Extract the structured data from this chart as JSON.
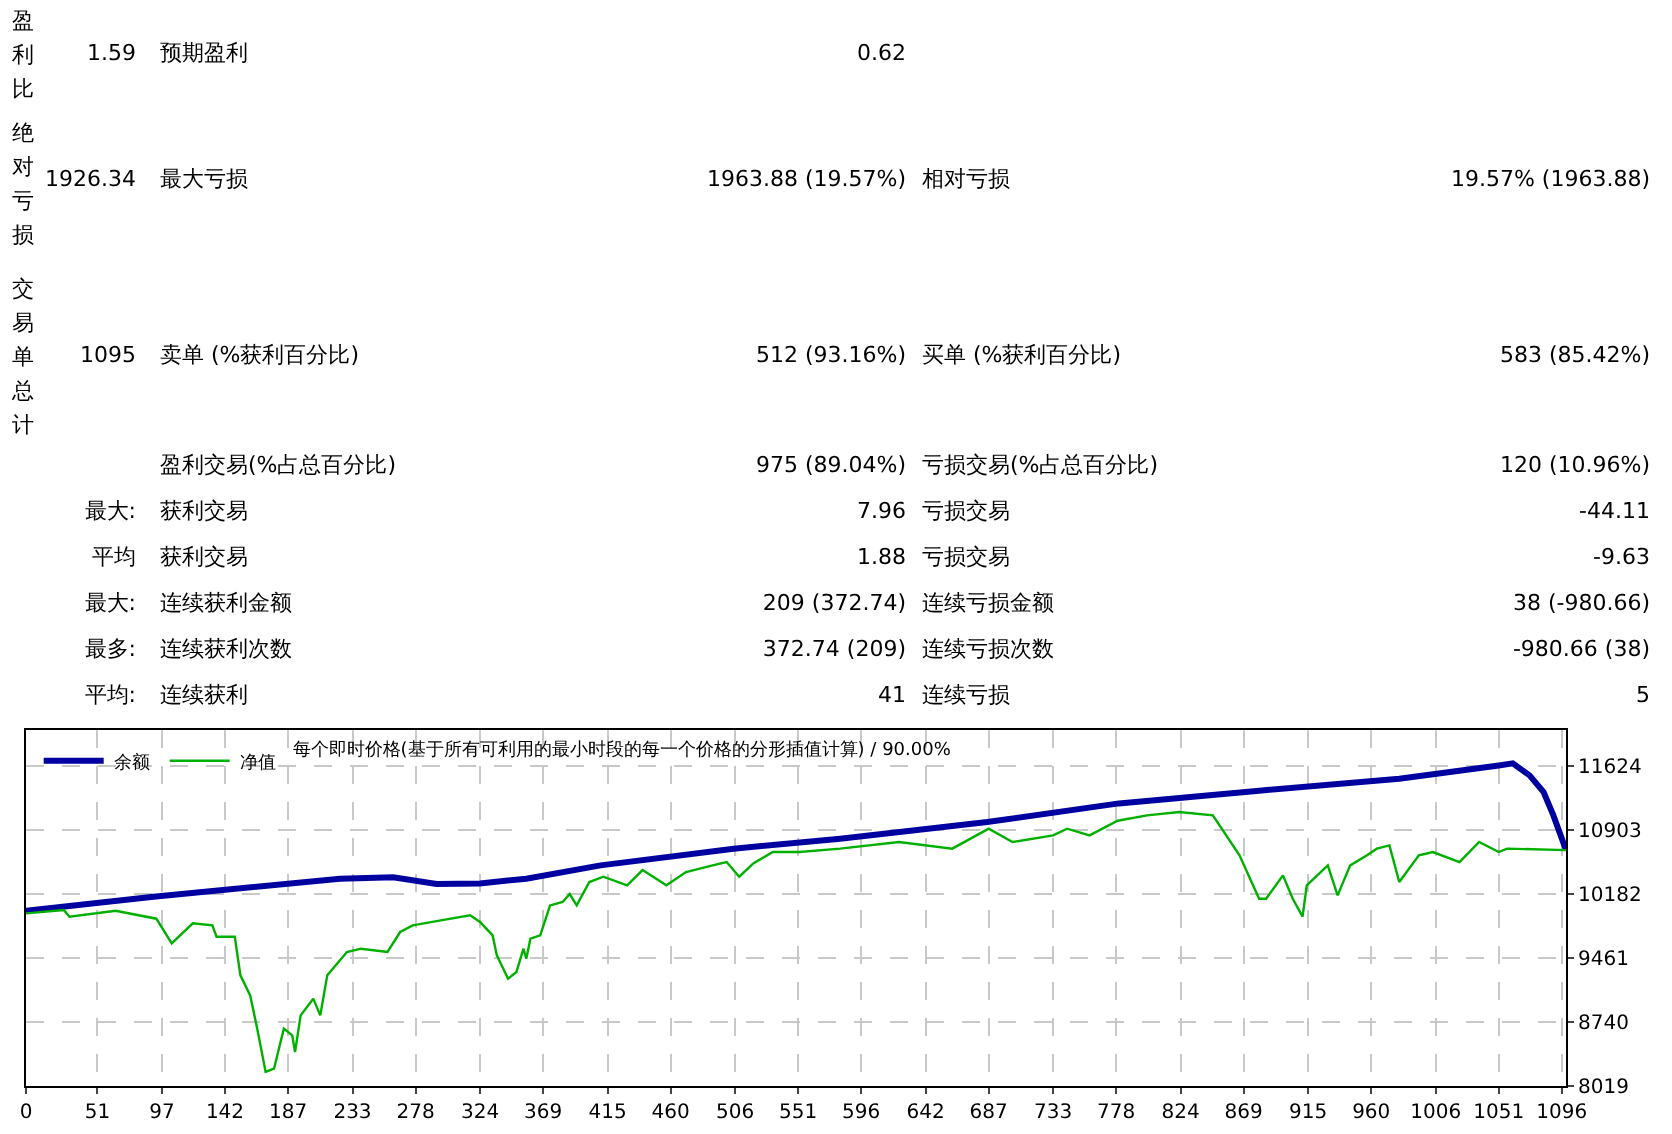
{
  "chart_data": [
    {
      "type": "other",
      "annotations": [
        "盈利比",
        "1.59",
        "预期盈利",
        "0.62",
        "绝对亏损",
        "1926.34",
        "最大亏损",
        "1963.88 (19.57%)",
        "相对亏损",
        "19.57% (1963.88)",
        "交易单总计",
        "1095",
        "卖单 (%获利百分比)",
        "512 (93.16%)",
        "买单 (%获利百分比)",
        "583 (85.42%)",
        "盈利交易(%占总百分比)",
        "975 (89.04%)",
        "亏损交易(%占总百分比)",
        "120 (10.96%)",
        "最大:",
        "获利交易",
        "7.96",
        "亏损交易",
        "-44.11",
        "平均",
        "获利交易",
        "1.88",
        "亏损交易",
        "-9.63",
        "最大:",
        "连续获利金额",
        "209 (372.74)",
        "连续亏损金额",
        "38 (-980.66)",
        "最多:",
        "连续获利次数",
        "372.74 (209)",
        "连续亏损次数",
        "-980.66 (38)",
        "平均:",
        "连续获利",
        "41",
        "连续亏损",
        "5"
      ]
    },
    {
      "type": "line",
      "title": "每个即时价格(基于所有可利用的最小时段的每一个价格的分形插值计算) / 90.00%",
      "series": [
        {
          "name": "余额",
          "color": "#0000a0",
          "x": [
            0,
            91,
            224,
            262,
            293,
            324,
            357,
            410,
            505,
            581,
            686,
            780,
            880,
            980,
            1051,
            1061,
            1073,
            1083,
            1090,
            1099
          ],
          "values": [
            9994,
            10152,
            10355,
            10370,
            10295,
            10302,
            10355,
            10505,
            10693,
            10805,
            10993,
            11203,
            11346,
            11481,
            11631,
            11654,
            11519,
            11331,
            11068,
            10677
          ]
        },
        {
          "name": "净值",
          "color": "#00b000",
          "x": [
            0,
            27,
            31,
            64,
            93,
            104,
            119,
            133,
            136,
            149,
            153,
            160,
            165,
            171,
            177,
            184,
            190,
            192,
            196,
            205,
            210,
            215,
            229,
            239,
            258,
            267,
            276,
            295,
            317,
            324,
            333,
            336,
            344,
            350,
            355,
            357,
            360,
            367,
            374,
            383,
            388,
            393,
            402,
            412,
            429,
            440,
            457,
            471,
            490,
            500,
            509,
            519,
            533,
            552,
            581,
            623,
            661,
            687,
            704,
            733,
            743,
            759,
            779,
            800,
            823,
            847,
            866,
            880,
            885,
            897,
            904,
            911,
            914,
            929,
            936,
            945,
            957,
            964,
            973,
            980,
            994,
            1004,
            1023,
            1037,
            1051,
            1057,
            1099
          ],
          "values": [
            9964,
            10002,
            9927,
            9994,
            9904,
            9626,
            9852,
            9829,
            9701,
            9701,
            9266,
            9040,
            8665,
            8177,
            8214,
            8665,
            8590,
            8402,
            8815,
            9003,
            8815,
            9266,
            9529,
            9566,
            9529,
            9754,
            9829,
            9882,
            9942,
            9867,
            9716,
            9491,
            9228,
            9303,
            9566,
            9453,
            9679,
            9716,
            10054,
            10092,
            10182,
            10054,
            10317,
            10377,
            10280,
            10452,
            10280,
            10430,
            10505,
            10542,
            10377,
            10527,
            10655,
            10655,
            10693,
            10768,
            10693,
            10918,
            10768,
            10843,
            10918,
            10843,
            11008,
            11068,
            11106,
            11068,
            10618,
            10129,
            10129,
            10392,
            10129,
            9927,
            10280,
            10505,
            10167,
            10505,
            10618,
            10693,
            10730,
            10317,
            10618,
            10655,
            10542,
            10768,
            10655,
            10693,
            10677
          ]
        }
      ],
      "xlim": [
        0,
        1099
      ],
      "xticks": [
        0,
        51,
        97,
        142,
        187,
        233,
        278,
        324,
        369,
        415,
        460,
        506,
        551,
        596,
        642,
        687,
        733,
        778,
        824,
        869,
        915,
        960,
        1006,
        1051,
        1096
      ],
      "ylim": [
        8019,
        12030
      ],
      "yticks": [
        8019,
        8740,
        9461,
        10182,
        10903,
        11624
      ],
      "grid": true,
      "legend": "top left",
      "marker": "none",
      "line_style": "solid"
    }
  ]
}
